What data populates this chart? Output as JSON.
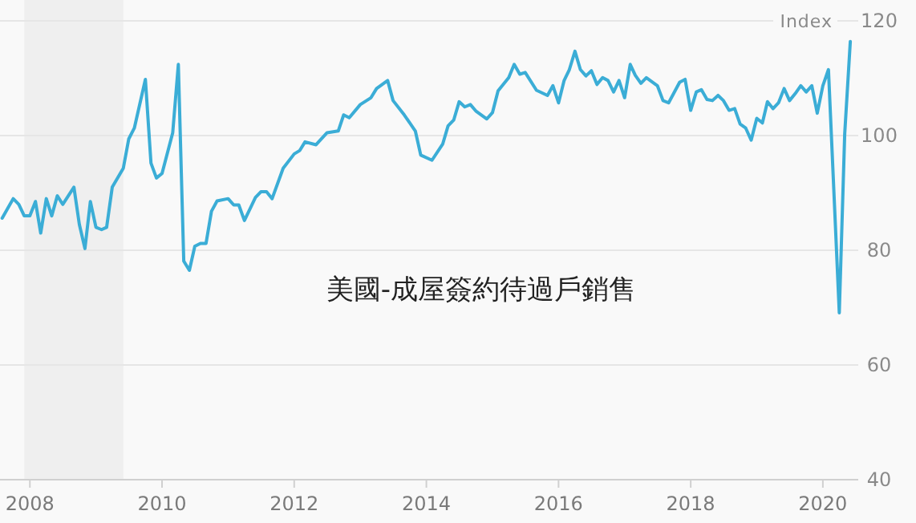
{
  "chart_data": {
    "type": "line",
    "title": "美國-成屋簽約待過戶銷售",
    "ylabel": "Index",
    "x": [
      "2007-08",
      "2007-10",
      "2007-11",
      "2007-12",
      "2008-01",
      "2008-02",
      "2008-03",
      "2008-04",
      "2008-05",
      "2008-06",
      "2008-07",
      "2008-09",
      "2008-10",
      "2008-11",
      "2008-12",
      "2009-01",
      "2009-02",
      "2009-03",
      "2009-04",
      "2009-06",
      "2009-07",
      "2009-08",
      "2009-10",
      "2009-11",
      "2009-12",
      "2010-01",
      "2010-03",
      "2010-04",
      "2010-05",
      "2010-06",
      "2010-07",
      "2010-08",
      "2010-09",
      "2010-10",
      "2010-11",
      "2011-01",
      "2011-02",
      "2011-03",
      "2011-04",
      "2011-06",
      "2011-07",
      "2011-08",
      "2011-09",
      "2011-11",
      "2012-01",
      "2012-02",
      "2012-03",
      "2012-05",
      "2012-07",
      "2012-09",
      "2012-10",
      "2012-11",
      "2013-01",
      "2013-03",
      "2013-04",
      "2013-06",
      "2013-07",
      "2013-09",
      "2013-11",
      "2013-12",
      "2014-02",
      "2014-04",
      "2014-05",
      "2014-06",
      "2014-07",
      "2014-08",
      "2014-09",
      "2014-10",
      "2014-12",
      "2015-01",
      "2015-02",
      "2015-04",
      "2015-05",
      "2015-06",
      "2015-07",
      "2015-09",
      "2015-11",
      "2015-12",
      "2016-01",
      "2016-02",
      "2016-03",
      "2016-04",
      "2016-05",
      "2016-06",
      "2016-07",
      "2016-08",
      "2016-09",
      "2016-10",
      "2016-11",
      "2016-12",
      "2017-01",
      "2017-02",
      "2017-03",
      "2017-04",
      "2017-05",
      "2017-07",
      "2017-08",
      "2017-09",
      "2017-11",
      "2017-12",
      "2018-01",
      "2018-02",
      "2018-03",
      "2018-04",
      "2018-05",
      "2018-06",
      "2018-07",
      "2018-08",
      "2018-09",
      "2018-10",
      "2018-11",
      "2018-12",
      "2019-01",
      "2019-02",
      "2019-03",
      "2019-04",
      "2019-05",
      "2019-06",
      "2019-07",
      "2019-08",
      "2019-09",
      "2019-10",
      "2019-11",
      "2019-12",
      "2020-01",
      "2020-02",
      "2020-04",
      "2020-05",
      "2020-06"
    ],
    "series": [
      {
        "color": "#3badd6",
        "values": [
          85.6,
          89,
          88,
          86,
          86,
          88.5,
          83,
          89,
          86,
          89.5,
          88,
          91,
          84.5,
          80.3,
          88.5,
          84,
          83.6,
          84,
          91,
          94.3,
          99.4,
          101.3,
          109.8,
          95.2,
          92.6,
          93.4,
          100.5,
          112.4,
          78.1,
          76.5,
          80.7,
          81.2,
          81.2,
          86.8,
          88.6,
          89,
          87.9,
          87.9,
          85.2,
          89.2,
          90.2,
          90.2,
          89,
          94.3,
          96.8,
          97.4,
          98.9,
          98.4,
          100.5,
          100.8,
          103.6,
          103.1,
          105.4,
          106.6,
          108.2,
          109.6,
          106.1,
          103.6,
          100.8,
          96.6,
          95.7,
          98.5,
          101.7,
          102.7,
          105.9,
          105,
          105.4,
          104.3,
          102.9,
          104,
          107.8,
          110.1,
          112.4,
          110.7,
          111,
          107.9,
          107,
          108.7,
          105.7,
          109.6,
          111.5,
          114.7,
          111.5,
          110.4,
          111.3,
          108.9,
          110.1,
          109.6,
          107.6,
          109.6,
          106.6,
          112.4,
          110.5,
          109.1,
          110.1,
          108.7,
          106.1,
          105.7,
          109.3,
          109.8,
          104.4,
          107.6,
          108,
          106.3,
          106.1,
          107,
          106.1,
          104.4,
          104.7,
          102,
          101.3,
          99.2,
          103,
          102.2,
          105.9,
          104.7,
          105.7,
          108.2,
          106.1,
          107.3,
          108.7,
          107.6,
          108.7,
          103.9,
          108.7,
          111.5,
          69.1,
          100.3,
          116.4
        ]
      }
    ],
    "xlim": [
      "2007-07-20",
      "2020-07-15"
    ],
    "xticks": [
      "2008",
      "2010",
      "2012",
      "2014",
      "2016",
      "2018",
      "2020"
    ],
    "ylim": [
      40,
      120
    ],
    "yticks": [
      40,
      60,
      80,
      100,
      120
    ],
    "grid": "y",
    "bands": [
      {
        "axis": "x",
        "from": "2007-12",
        "to": "2009-06",
        "color": "#efefef"
      }
    ]
  }
}
